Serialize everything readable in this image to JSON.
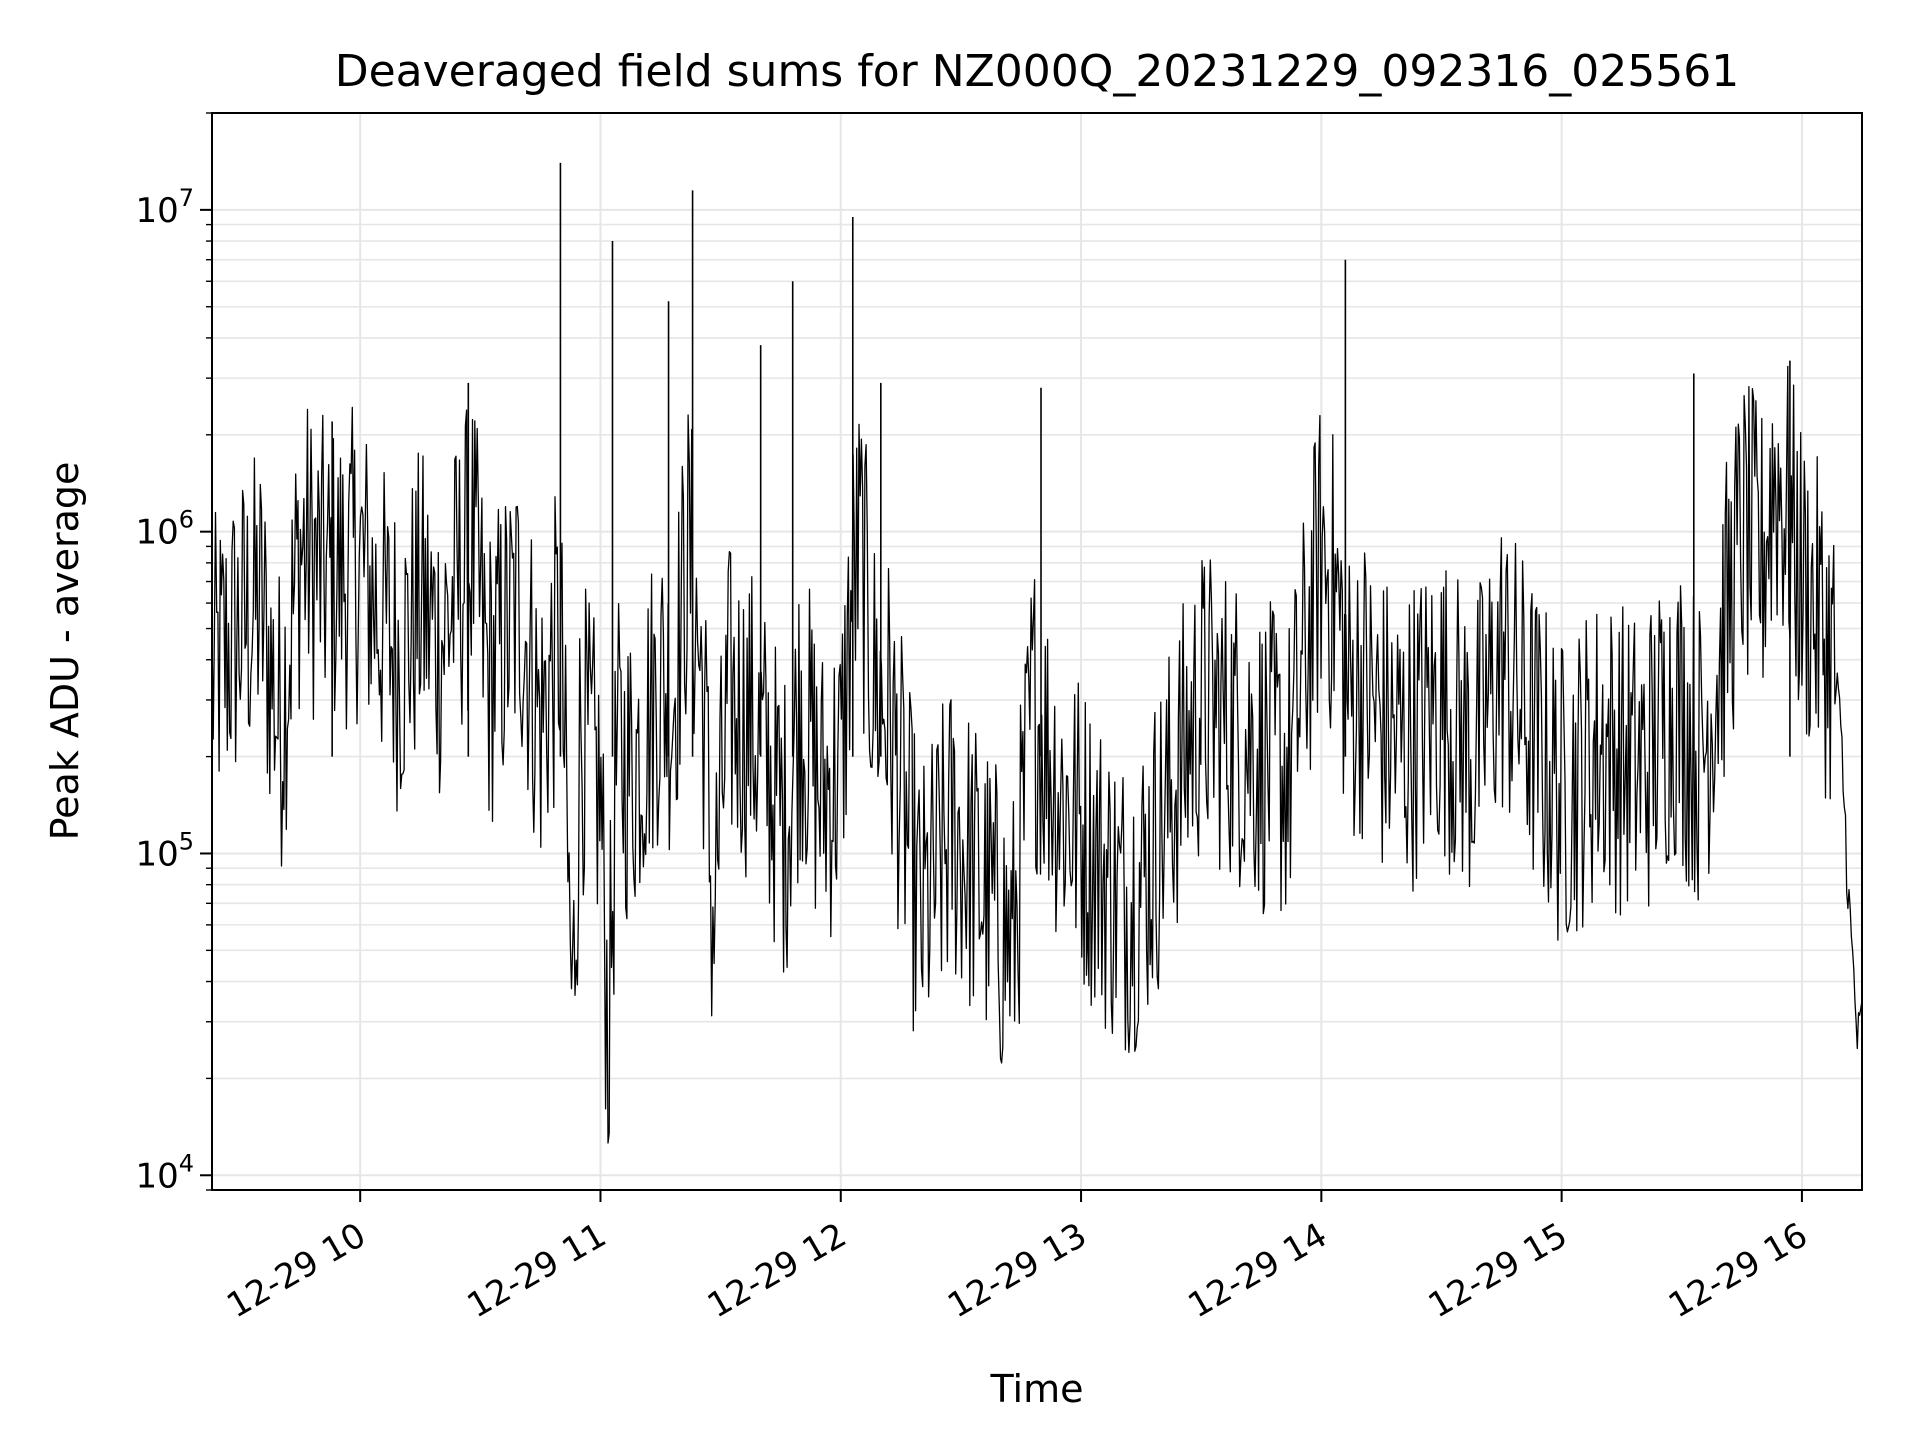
{
  "chart_data": {
    "type": "line",
    "title": "Deaveraged field sums for NZ000Q_20231229_092316_025561",
    "xlabel": "Time",
    "ylabel": "Peak ADU - average",
    "yscale": "log",
    "ylim": [
      9000,
      20000000
    ],
    "xlim": [
      "2023-12-29 09:23",
      "2023-12-29 16:15"
    ],
    "grid": true,
    "x_tick_labels": [
      "12-29 10",
      "12-29 11",
      "12-29 12",
      "12-29 13",
      "12-29 14",
      "12-29 15",
      "12-29 16"
    ],
    "x_tick_times": [
      "2023-12-29 10:00",
      "2023-12-29 11:00",
      "2023-12-29 12:00",
      "2023-12-29 13:00",
      "2023-12-29 14:00",
      "2023-12-29 15:00",
      "2023-12-29 16:00"
    ],
    "y_tick_labels": [
      {
        "base": "10",
        "exp": "4"
      },
      {
        "base": "10",
        "exp": "5"
      },
      {
        "base": "10",
        "exp": "6"
      },
      {
        "base": "10",
        "exp": "7"
      }
    ],
    "y_tick_values": [
      10000,
      100000,
      1000000,
      10000000
    ],
    "series": [
      {
        "color": "#000000",
        "x": [
          "2023-12-29 09:23",
          "2023-12-29 09:30",
          "2023-12-29 09:35",
          "2023-12-29 09:40",
          "2023-12-29 09:45",
          "2023-12-29 09:52",
          "2023-12-29 10:00",
          "2023-12-29 10:05",
          "2023-12-29 10:10",
          "2023-12-29 10:15",
          "2023-12-29 10:20",
          "2023-12-29 10:25",
          "2023-12-29 10:28",
          "2023-12-29 10:32",
          "2023-12-29 10:40",
          "2023-12-29 10:45",
          "2023-12-29 10:50",
          "2023-12-29 10:53",
          "2023-12-29 10:55",
          "2023-12-29 11:00",
          "2023-12-29 11:02",
          "2023-12-29 11:04",
          "2023-12-29 11:08",
          "2023-12-29 11:15",
          "2023-12-29 11:18",
          "2023-12-29 11:22",
          "2023-12-29 11:26",
          "2023-12-29 11:28",
          "2023-12-29 11:32",
          "2023-12-29 11:38",
          "2023-12-29 11:42",
          "2023-12-29 11:46",
          "2023-12-29 11:50",
          "2023-12-29 11:55",
          "2023-12-29 12:00",
          "2023-12-29 12:03",
          "2023-12-29 12:05",
          "2023-12-29 12:08",
          "2023-12-29 12:12",
          "2023-12-29 12:20",
          "2023-12-29 12:28",
          "2023-12-29 12:35",
          "2023-12-29 12:43",
          "2023-12-29 12:48",
          "2023-12-29 12:55",
          "2023-12-29 13:00",
          "2023-12-29 13:05",
          "2023-12-29 13:10",
          "2023-12-29 13:15",
          "2023-12-29 13:20",
          "2023-12-29 13:30",
          "2023-12-29 13:38",
          "2023-12-29 13:45",
          "2023-12-29 13:52",
          "2023-12-29 14:00",
          "2023-12-29 14:04",
          "2023-12-29 14:07",
          "2023-12-29 14:10",
          "2023-12-29 14:15",
          "2023-12-29 14:20",
          "2023-12-29 14:30",
          "2023-12-29 14:38",
          "2023-12-29 14:45",
          "2023-12-29 14:52",
          "2023-12-29 15:00",
          "2023-12-29 15:10",
          "2023-12-29 15:20",
          "2023-12-29 15:28",
          "2023-12-29 15:35",
          "2023-12-29 15:40",
          "2023-12-29 15:45",
          "2023-12-29 15:50",
          "2023-12-29 15:53",
          "2023-12-29 15:56",
          "2023-12-29 16:00",
          "2023-12-29 16:05",
          "2023-12-29 16:08",
          "2023-12-29 16:10",
          "2023-12-29 16:12",
          "2023-12-29 16:14",
          "2023-12-29 16:15"
        ],
        "y": [
          350000,
          500000,
          600000,
          250000,
          900000,
          700000,
          800000,
          550000,
          400000,
          600000,
          450000,
          700000,
          900000,
          350000,
          600000,
          250000,
          500000,
          30000,
          250000,
          150000,
          25000,
          200000,
          180000,
          350000,
          300000,
          900000,
          280000,
          60000,
          300000,
          250000,
          180000,
          120000,
          300000,
          150000,
          180000,
          700000,
          900000,
          350000,
          280000,
          60000,
          120000,
          80000,
          50000,
          300000,
          150000,
          120000,
          90000,
          70000,
          80000,
          120000,
          300000,
          250000,
          200000,
          180000,
          900000,
          600000,
          300000,
          350000,
          250000,
          220000,
          300000,
          200000,
          400000,
          250000,
          150000,
          220000,
          180000,
          300000,
          200000,
          450000,
          1000000,
          800000,
          1500000,
          1200000,
          700000,
          500000,
          400000,
          200000,
          60000,
          25000,
          30000
        ]
      }
    ],
    "spikes": [
      {
        "x": "2023-12-29 10:50",
        "y": 14000000
      },
      {
        "x": "2023-12-29 11:03",
        "y": 8000000
      },
      {
        "x": "2023-12-29 11:17",
        "y": 5200000
      },
      {
        "x": "2023-12-29 11:23",
        "y": 11500000
      },
      {
        "x": "2023-12-29 11:40",
        "y": 3800000
      },
      {
        "x": "2023-12-29 11:48",
        "y": 6000000
      },
      {
        "x": "2023-12-29 12:03",
        "y": 9500000
      },
      {
        "x": "2023-12-29 12:10",
        "y": 2900000
      },
      {
        "x": "2023-12-29 12:50",
        "y": 2800000
      },
      {
        "x": "2023-12-29 14:06",
        "y": 7000000
      },
      {
        "x": "2023-12-29 15:33",
        "y": 3100000
      },
      {
        "x": "2023-12-29 15:57",
        "y": 3400000
      },
      {
        "x": "2023-12-29 10:27",
        "y": 2900000
      },
      {
        "x": "2023-12-29 09:53",
        "y": 2200000
      }
    ]
  }
}
